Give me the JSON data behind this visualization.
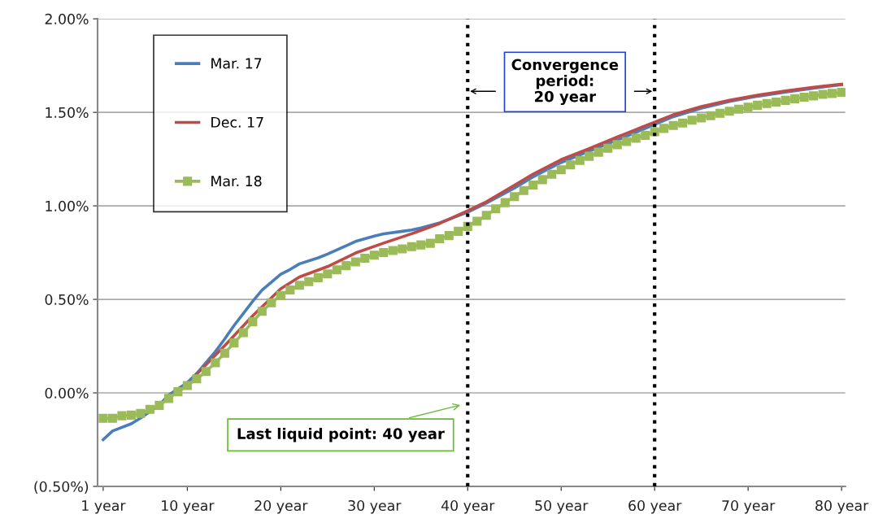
{
  "chart_data": {
    "type": "line",
    "xlim": [
      0.4,
      80.4
    ],
    "xticks": [
      {
        "value": 1,
        "label": "1 year"
      },
      {
        "value": 10,
        "label": "10 year"
      },
      {
        "value": 20,
        "label": "20 year"
      },
      {
        "value": 30,
        "label": "30 year"
      },
      {
        "value": 40,
        "label": "40 year"
      },
      {
        "value": 50,
        "label": "50 year"
      },
      {
        "value": 60,
        "label": "60 year"
      },
      {
        "value": 70,
        "label": "70 year"
      },
      {
        "value": 80,
        "label": "80 year"
      }
    ],
    "ylim": [
      -0.5,
      2.0
    ],
    "yticks": [
      {
        "value": -0.5,
        "label": "(0.50%)"
      },
      {
        "value": 0,
        "label": "0.00%"
      },
      {
        "value": 0.5,
        "label": "0.50%"
      },
      {
        "value": 1.0,
        "label": "1.00%"
      },
      {
        "value": 1.5,
        "label": "1.50%"
      },
      {
        "value": 2.0,
        "label": "2.00%"
      }
    ],
    "grid": "y",
    "legend": "top left",
    "line_style": "solid",
    "series": [
      {
        "name": "Mar. 17",
        "color": "#4a7ebb",
        "marker": "none",
        "x": [
          1,
          2,
          4,
          5,
          7,
          8,
          10,
          11,
          13,
          14,
          15,
          17,
          18,
          20,
          21,
          22,
          24,
          25,
          27,
          28,
          30,
          31,
          33,
          34,
          35,
          37,
          38,
          40,
          42,
          45,
          47,
          50,
          53,
          56,
          59,
          62,
          65,
          68,
          71,
          74,
          77,
          80
        ],
        "values": [
          -0.25,
          -0.204,
          -0.165,
          -0.135,
          -0.065,
          -0.012,
          0.055,
          0.103,
          0.22,
          0.288,
          0.36,
          0.49,
          0.55,
          0.635,
          0.66,
          0.69,
          0.722,
          0.742,
          0.787,
          0.81,
          0.838,
          0.85,
          0.864,
          0.871,
          0.882,
          0.909,
          0.928,
          0.966,
          1.015,
          1.095,
          1.155,
          1.232,
          1.292,
          1.352,
          1.414,
          1.477,
          1.522,
          1.558,
          1.586,
          1.608,
          1.629,
          1.648
        ]
      },
      {
        "name": "Dec. 17",
        "color": "#be4b48",
        "marker": "none",
        "x": [
          11,
          14,
          17,
          20,
          22,
          25,
          28,
          31,
          34,
          37,
          40,
          42,
          45,
          47,
          50,
          53,
          56,
          59,
          62,
          65,
          68,
          71,
          74,
          77,
          80
        ],
        "values": [
          0.1,
          0.252,
          0.412,
          0.557,
          0.62,
          0.675,
          0.748,
          0.801,
          0.851,
          0.906,
          0.974,
          1.022,
          1.11,
          1.17,
          1.247,
          1.306,
          1.368,
          1.428,
          1.487,
          1.531,
          1.565,
          1.592,
          1.614,
          1.634,
          1.651
        ]
      },
      {
        "name": "Mar. 18",
        "color": "#9bbb59",
        "marker": "square",
        "x": [
          1,
          2,
          3,
          4,
          5,
          6,
          7,
          8,
          9,
          10,
          11,
          12,
          13,
          14,
          15,
          16,
          17,
          18,
          19,
          20,
          21,
          22,
          23,
          24,
          25,
          26,
          27,
          28,
          29,
          30,
          31,
          32,
          33,
          34,
          35,
          36,
          37,
          38,
          39,
          40,
          41,
          42,
          43,
          44,
          45,
          46,
          47,
          48,
          49,
          50,
          51,
          52,
          53,
          54,
          55,
          56,
          57,
          58,
          59,
          60,
          61,
          62,
          63,
          64,
          65,
          66,
          67,
          68,
          69,
          70,
          71,
          72,
          73,
          74,
          75,
          76,
          77,
          78,
          79,
          80
        ],
        "values": [
          -0.136,
          -0.136,
          -0.122,
          -0.119,
          -0.11,
          -0.088,
          -0.067,
          -0.03,
          0.006,
          0.039,
          0.075,
          0.114,
          0.161,
          0.212,
          0.267,
          0.322,
          0.38,
          0.436,
          0.482,
          0.521,
          0.55,
          0.575,
          0.595,
          0.616,
          0.636,
          0.658,
          0.68,
          0.7,
          0.72,
          0.736,
          0.75,
          0.761,
          0.77,
          0.782,
          0.791,
          0.8,
          0.824,
          0.841,
          0.864,
          0.89,
          0.918,
          0.949,
          0.984,
          1.017,
          1.049,
          1.082,
          1.111,
          1.14,
          1.169,
          1.193,
          1.219,
          1.243,
          1.265,
          1.287,
          1.308,
          1.327,
          1.344,
          1.362,
          1.377,
          1.396,
          1.414,
          1.43,
          1.443,
          1.458,
          1.47,
          1.482,
          1.495,
          1.506,
          1.517,
          1.527,
          1.538,
          1.547,
          1.555,
          1.564,
          1.573,
          1.581,
          1.588,
          1.596,
          1.601,
          1.607
        ]
      }
    ],
    "ref_lines": [
      {
        "axis": "x",
        "value": 40,
        "color": "#000000",
        "line_style": "dotted"
      },
      {
        "axis": "x",
        "value": 60,
        "color": "#000000",
        "line_style": "dotted"
      }
    ],
    "annotations": [
      "Convergence\nperiod:\n20 year",
      "Last liquid point: 40 year"
    ]
  }
}
